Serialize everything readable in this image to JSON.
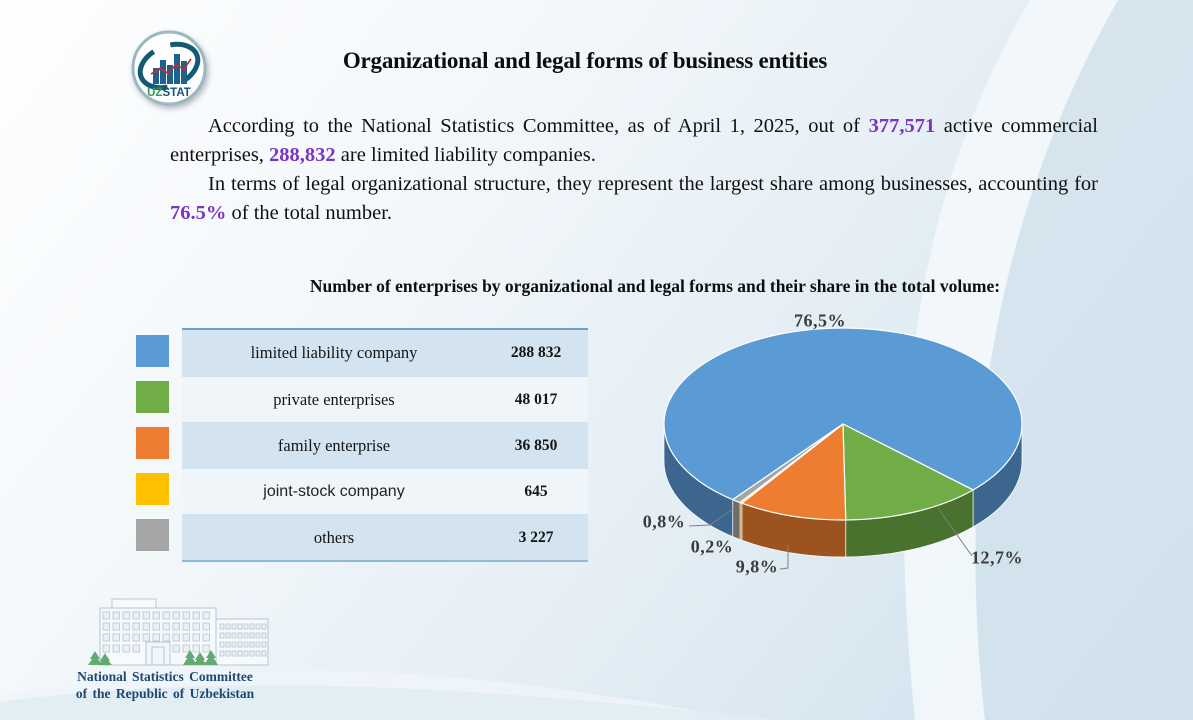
{
  "slide": {
    "title": "Organizational and legal forms of business entities",
    "logo": {
      "uz": "UZ",
      "stat": "STAT"
    },
    "intro": {
      "p1_before": "According to the National Statistics Committee, as of April 1, 2025, out of ",
      "p1_num1": "377,571",
      "p1_mid": " active commercial enterprises, ",
      "p1_num2": "288,832",
      "p1_after": " are limited liability companies.",
      "p2_before": "In terms of legal organizational structure, they represent the largest share among businesses, accounting for ",
      "p2_num": "76.5%",
      "p2_after": " of the total number."
    },
    "section_heading": "Number of enterprises by organizational and legal forms and their share in the total volume:",
    "footer": {
      "line1": "National Statistics Committee",
      "line2": "of the Republic of Uzbekistan"
    }
  },
  "chart_data": {
    "type": "pie",
    "style": "3d-pie",
    "title": "Number of enterprises by organizational and legal forms and their share in the total volume",
    "categories": [
      "limited liability company",
      "private enterprises",
      "family enterprise",
      "joint-stock company",
      "others"
    ],
    "values": [
      288832,
      48017,
      36850,
      645,
      3227
    ],
    "value_labels": [
      "288 832",
      "48 017",
      "36 850",
      "645",
      "3 227"
    ],
    "shares_pct": [
      76.5,
      12.7,
      9.8,
      0.2,
      0.8
    ],
    "share_labels": [
      "76,5%",
      "12,7%",
      "9,8%",
      "0,2%",
      "0,8%"
    ],
    "colors": [
      "#5B9BD5",
      "#70AD47",
      "#ED7D31",
      "#FFC000",
      "#A5A5A5"
    ],
    "legend_position": "left-table"
  },
  "colors": {
    "accent_purple": "#7B35C1",
    "footer_navy": "#1C4A75",
    "table_row_blue": "#D3E4F0",
    "table_row_light": "#EFF5F9",
    "leader_line": "#7f7f7f"
  }
}
